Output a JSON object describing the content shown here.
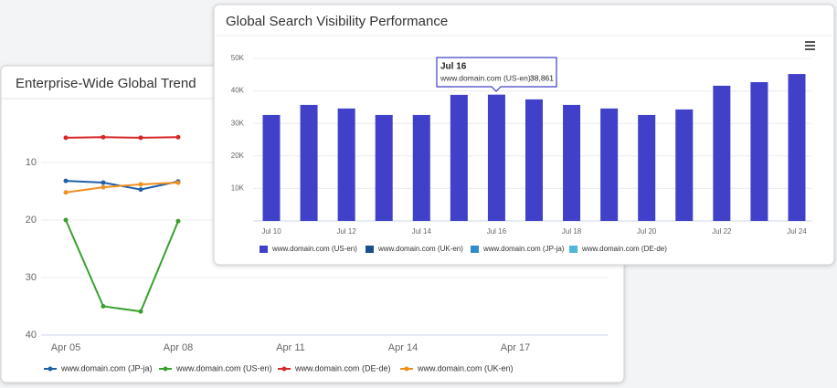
{
  "chart_data": [
    {
      "type": "line",
      "title": "Enterprise-Wide Global Trend",
      "categories": [
        "Apr 05",
        null,
        null,
        "Apr 08",
        null,
        null,
        "Apr 11",
        null,
        null,
        "Apr 14",
        null,
        null,
        "Apr 17",
        null,
        null
      ],
      "ylim": [
        2,
        40
      ],
      "y_inverted": true,
      "yticks": [
        10,
        20,
        30,
        40
      ],
      "grid": true,
      "series": [
        {
          "name": "www.domain.com (JP-ja)",
          "color": "#1f5fa8",
          "values": [
            13.2,
            13.5,
            14.7,
            13.3,
            null,
            null,
            null,
            null,
            null,
            null,
            null,
            null,
            null,
            null,
            null
          ]
        },
        {
          "name": "www.domain.com (US-en)",
          "color": "#3aa02f",
          "values": [
            20.0,
            35.0,
            35.9,
            20.2,
            null,
            null,
            null,
            null,
            null,
            null,
            null,
            null,
            null,
            null,
            null
          ]
        },
        {
          "name": "www.domain.com (DE-de)",
          "color": "#d62728",
          "values": [
            5.7,
            5.6,
            5.7,
            5.6,
            null,
            null,
            null,
            null,
            null,
            null,
            null,
            null,
            null,
            null,
            null
          ]
        },
        {
          "name": "www.domain.com (UK-en)",
          "color": "#f28e1c",
          "values": [
            15.2,
            14.3,
            13.8,
            13.5,
            null,
            null,
            null,
            null,
            null,
            null,
            null,
            null,
            null,
            null,
            null
          ]
        }
      ]
    },
    {
      "type": "bar",
      "title": "Global Search Visibility Performance",
      "categories": [
        "Jul 10",
        null,
        "Jul 12",
        null,
        "Jul 14",
        null,
        "Jul 16",
        null,
        "Jul 18",
        null,
        "Jul 20",
        null,
        "Jul 22",
        null,
        "Jul 24"
      ],
      "ylim": [
        0,
        50000
      ],
      "yticks": [
        {
          "value": 10000,
          "label": "10K"
        },
        {
          "value": 20000,
          "label": "20K"
        },
        {
          "value": 30000,
          "label": "30K"
        },
        {
          "value": 40000,
          "label": "40K"
        },
        {
          "value": 50000,
          "label": "50K"
        }
      ],
      "grid": true,
      "tooltip": {
        "label": "www.domain.com (US-en):"
      },
      "series": [
        {
          "name": "www.domain.com (US-en)",
          "color": "#4040c8",
          "values": [
            32600,
            35700,
            34600,
            32600,
            32600,
            38800,
            38861,
            37400,
            35700,
            34600,
            32600,
            34300,
            41600,
            42700,
            45200
          ],
          "value_labels": [
            null,
            null,
            null,
            null,
            null,
            null,
            "38,861",
            null,
            null,
            null,
            null,
            null,
            null,
            null,
            null
          ]
        },
        {
          "name": "www.domain.com (UK-en)",
          "color": "#1b4f8c",
          "values": [
            null,
            null,
            null,
            null,
            null,
            null,
            null,
            null,
            null,
            null,
            null,
            null,
            null,
            null,
            null
          ]
        },
        {
          "name": "www.domain.com (JP-ja)",
          "color": "#2f8cc8",
          "values": [
            null,
            null,
            null,
            null,
            null,
            null,
            null,
            null,
            null,
            null,
            null,
            null,
            null,
            null,
            null
          ]
        },
        {
          "name": "www.domain.com (DE-de)",
          "color": "#4fb8d8",
          "values": [
            null,
            null,
            null,
            null,
            null,
            null,
            null,
            null,
            null,
            null,
            null,
            null,
            null,
            null,
            null
          ]
        }
      ]
    }
  ]
}
